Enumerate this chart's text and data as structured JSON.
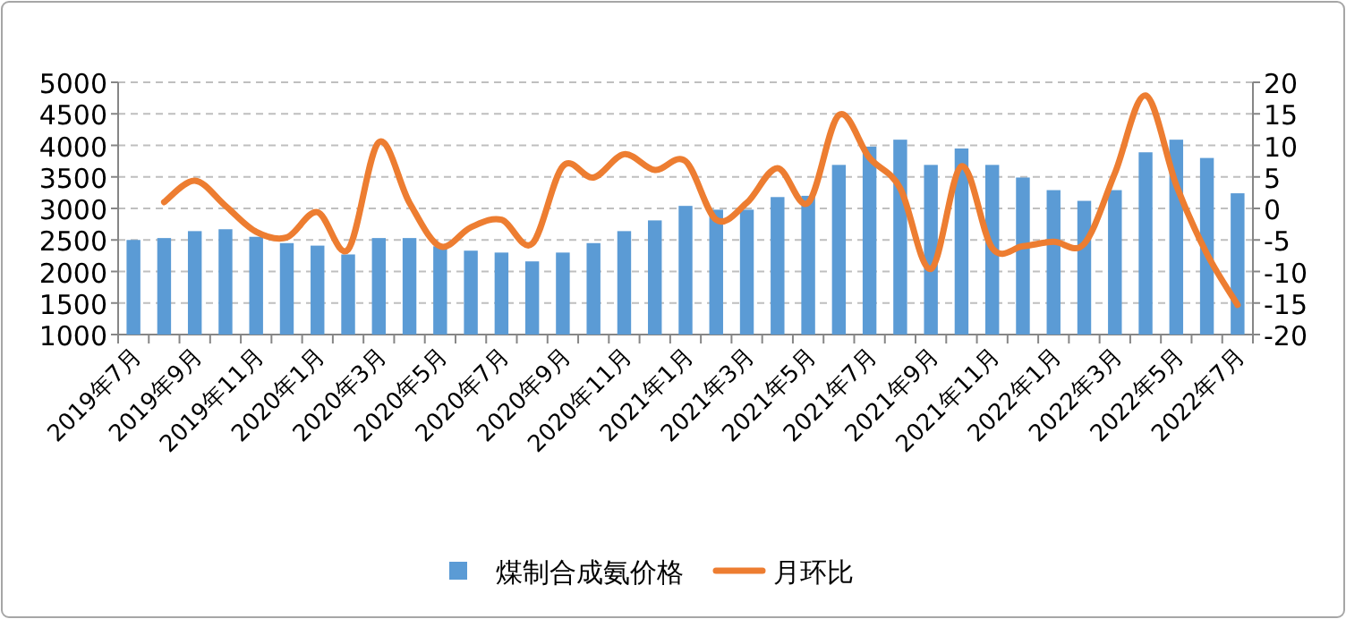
{
  "chart_data": {
    "type": "bar",
    "categories": [
      "2019年7月",
      null,
      "2019年9月",
      null,
      "2019年11月",
      null,
      "2020年1月",
      null,
      "2020年3月",
      null,
      "2020年5月",
      null,
      "2020年7月",
      null,
      "2020年9月",
      null,
      "2020年11月",
      null,
      "2021年1月",
      null,
      "2021年3月",
      null,
      "2021年5月",
      null,
      "2021年7月",
      null,
      "2021年9月",
      null,
      "2021年11月",
      null,
      "2022年1月",
      null,
      "2022年3月",
      null,
      "2022年5月",
      null,
      "2022年7月"
    ],
    "series": [
      {
        "name": "煤制合成氨价格",
        "color": "#5b9bd5",
        "values": [
          2500,
          2530,
          2640,
          2670,
          2550,
          2450,
          2410,
          2270,
          2530,
          2530,
          2400,
          2330,
          2300,
          2160,
          2300,
          2450,
          2640,
          2810,
          3040,
          2980,
          2980,
          3180,
          3200,
          3690,
          3980,
          4090,
          3690,
          3950,
          3690,
          3490,
          3290,
          3120,
          3290,
          3890,
          4090,
          3800,
          3240
        ]
      },
      {
        "name": "月环比",
        "type": "line",
        "axis": "y2",
        "color": "#ed7d31",
        "marker": "none",
        "values": [
          null,
          1,
          4.4,
          0.4,
          -3.7,
          -4.6,
          -0.6,
          -6.5,
          10.5,
          0.9,
          -6,
          -3,
          -1.8,
          -5.6,
          6.7,
          4.9,
          8.6,
          6.1,
          7.5,
          -1.8,
          0.9,
          6.4,
          0.9,
          14.8,
          8,
          3.2,
          -9.6,
          6.7,
          -6.3,
          -6,
          -5.3,
          -5.6,
          5.6,
          17.9,
          3.7,
          -7.2,
          -15.3
        ]
      }
    ],
    "ylim": [
      1000,
      5000
    ],
    "yticks": [
      1000,
      1500,
      2000,
      2500,
      3000,
      3500,
      4000,
      4500,
      5000
    ],
    "y2lim": [
      -20,
      20
    ],
    "y2ticks": [
      -20,
      -15,
      -10,
      -5,
      0,
      5,
      10,
      15,
      20
    ],
    "grid": "y",
    "legend": "bottom"
  }
}
